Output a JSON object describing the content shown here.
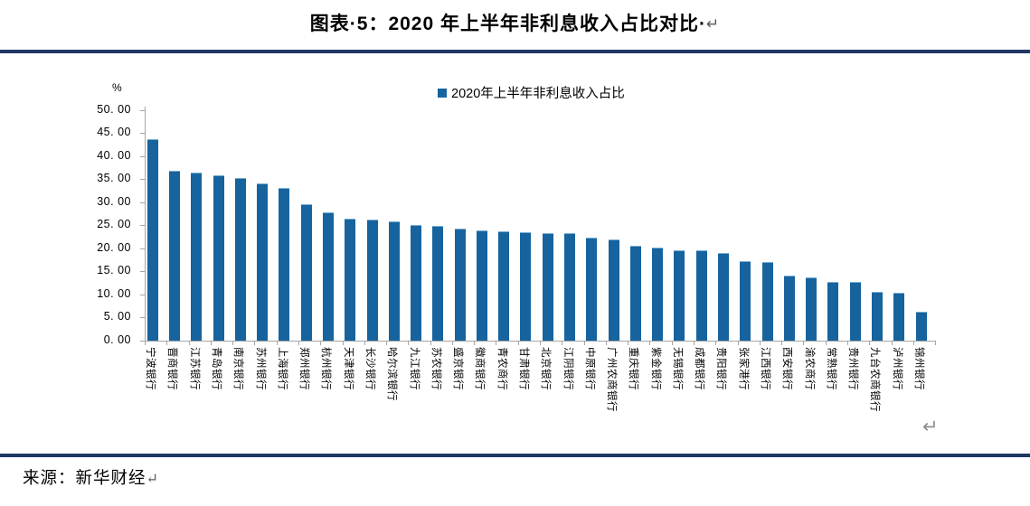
{
  "title": {
    "display": "图表·5：2020 年上半年非利息收入占比对比·",
    "return_mark": "↵"
  },
  "legend": {
    "label": "2020年上半年非利息收入占比"
  },
  "y_axis": {
    "unit": "%",
    "tick_labels": [
      "50. 00",
      "45. 00",
      "40. 00",
      "35. 00",
      "30. 00",
      "25. 00",
      "20. 00",
      "15. 00",
      "10. 00",
      "5. 00",
      "0. 00"
    ]
  },
  "source": {
    "prefix": "来源：",
    "text": "新华财经",
    "return_mark": "↵"
  },
  "marks": {
    "chart_return": "↵"
  },
  "colors": {
    "bar": "#16639E",
    "rule": "#1F3864",
    "axis": "#A6A6A6"
  },
  "chart_data": {
    "type": "bar",
    "title": "图表 5：2020 年上半年非利息收入占比对比",
    "legend": [
      "2020年上半年非利息收入占比"
    ],
    "xlabel": "",
    "ylabel": "%",
    "ylim": [
      0,
      50
    ],
    "yticks": [
      0,
      5,
      10,
      15,
      20,
      25,
      30,
      35,
      40,
      45,
      50
    ],
    "grid": false,
    "legend_position": "top-center",
    "bar_color": "#16639E",
    "categories": [
      "宁波银行",
      "晋商银行",
      "江苏银行",
      "青岛银行",
      "南京银行",
      "苏州银行",
      "上海银行",
      "郑州银行",
      "杭州银行",
      "天津银行",
      "长沙银行",
      "哈尔滨银行",
      "九江银行",
      "苏农银行",
      "盛京银行",
      "徽商银行",
      "青农商行",
      "甘肃银行",
      "北京银行",
      "江阴银行",
      "中原银行",
      "广州农商银行",
      "重庆银行",
      "紫金银行",
      "无锡银行",
      "成都银行",
      "贵阳银行",
      "张家港行",
      "江西银行",
      "西安银行",
      "渝农商行",
      "常熟银行",
      "贵州银行",
      "九台农商银行",
      "泸州银行",
      "锦州银行"
    ],
    "values": [
      43.4,
      36.6,
      36.2,
      35.6,
      35.1,
      33.8,
      32.9,
      29.4,
      27.6,
      26.3,
      26.0,
      25.6,
      24.9,
      24.6,
      24.0,
      23.6,
      23.4,
      23.3,
      23.1,
      23.0,
      22.2,
      21.7,
      20.4,
      19.9,
      19.4,
      19.3,
      18.7,
      17.1,
      16.8,
      13.8,
      13.5,
      12.6,
      12.5,
      10.3,
      10.2,
      6.0
    ],
    "source": "来源：新华财经"
  }
}
